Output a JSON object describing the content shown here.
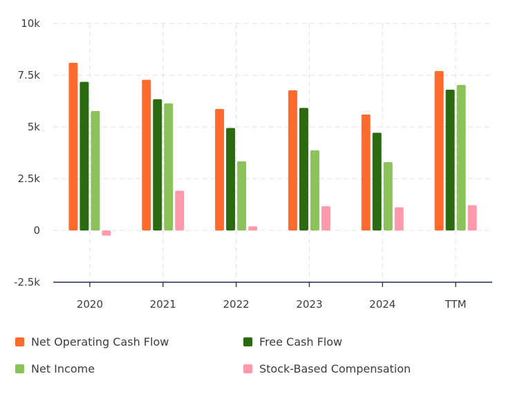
{
  "chart_data": {
    "type": "bar",
    "categories": [
      "2020",
      "2021",
      "2022",
      "2023",
      "2024",
      "TTM"
    ],
    "series": [
      {
        "name": "Net Operating Cash Flow",
        "color": "#ff6b2c",
        "values": [
          8100,
          7280,
          5870,
          6770,
          5600,
          7700
        ]
      },
      {
        "name": "Free Cash Flow",
        "color": "#2a6b10",
        "values": [
          7180,
          6340,
          4950,
          5920,
          4720,
          6800
        ]
      },
      {
        "name": "Net Income",
        "color": "#8bc25a",
        "values": [
          5770,
          6140,
          3340,
          3870,
          3300,
          7030
        ]
      },
      {
        "name": "Stock-Based Compensation",
        "color": "#ff9aad",
        "values": [
          -250,
          1920,
          200,
          1170,
          1120,
          1220
        ]
      }
    ],
    "y_ticks": [
      "10k",
      "7.5k",
      "5k",
      "2.5k",
      "0",
      "-2.5k"
    ],
    "y_tick_values": [
      10000,
      7500,
      5000,
      2500,
      0,
      -2500
    ],
    "ylim": [
      -2500,
      10000
    ],
    "grid": true,
    "legend_position": "bottom"
  }
}
